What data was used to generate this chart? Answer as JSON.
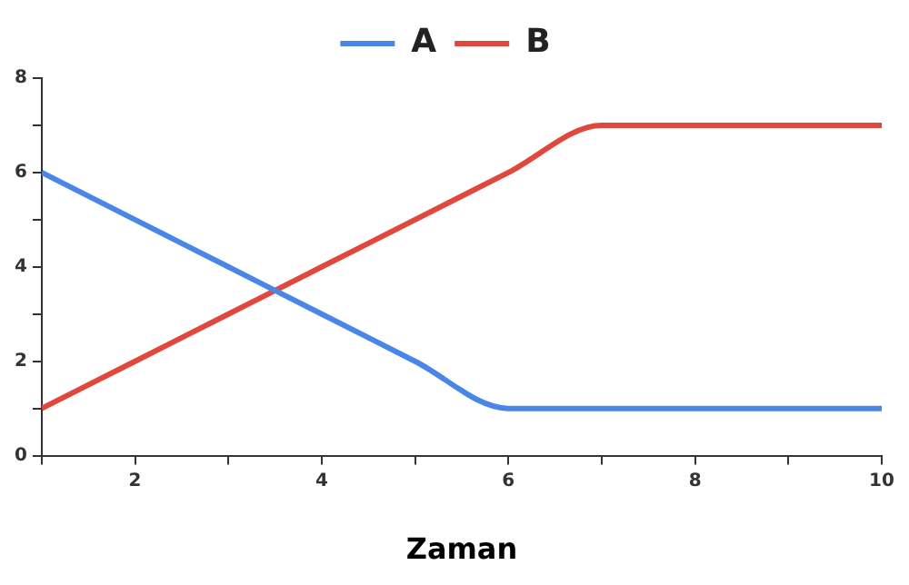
{
  "chart_data": {
    "type": "line",
    "xlabel": "Zaman",
    "x": [
      1,
      2,
      3,
      4,
      5,
      6,
      7,
      8,
      9,
      10
    ],
    "series": [
      {
        "name": "A",
        "color": "#4a86e8",
        "values": [
          6,
          5,
          4,
          3,
          2,
          1,
          1,
          1,
          1,
          1
        ]
      },
      {
        "name": "B",
        "color": "#e0483d",
        "values": [
          1,
          2,
          3,
          4,
          5,
          6,
          7,
          7,
          7,
          7
        ]
      }
    ],
    "xlim": [
      1,
      10
    ],
    "xticks": [
      {
        "value": 1,
        "label": null
      },
      2,
      {
        "value": 3,
        "label": null
      },
      4,
      {
        "value": 5,
        "label": null
      },
      6,
      {
        "value": 7,
        "label": null
      },
      8,
      {
        "value": 9,
        "label": null
      },
      10
    ],
    "ylim": [
      0,
      8
    ],
    "yticks": [
      0,
      {
        "value": 1,
        "label": null
      },
      2,
      {
        "value": 3,
        "label": null
      },
      4,
      {
        "value": 5,
        "label": null
      },
      6,
      {
        "value": 7,
        "label": null
      },
      8
    ],
    "grid": false,
    "legend": "top",
    "marker": "none",
    "line_style": "solid"
  }
}
